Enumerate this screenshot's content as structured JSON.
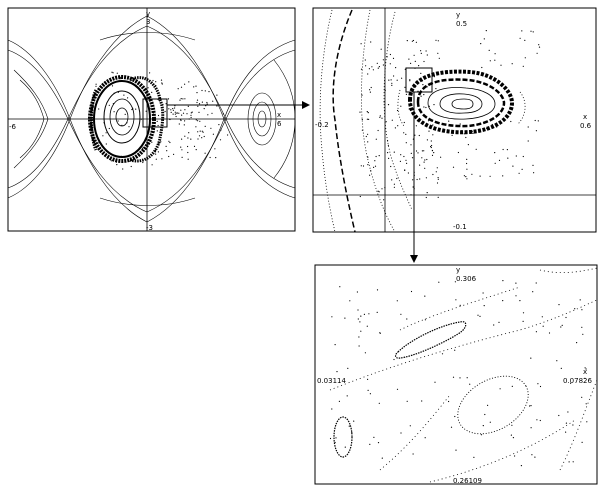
{
  "panels": {
    "main": {
      "y_axis_name": "y",
      "y_top": "3",
      "y_bottom": "-3",
      "x_left": "-6",
      "x_right": "6",
      "x_axis_name": "x"
    },
    "zoom1": {
      "y_axis_name": "y",
      "y_top": "0.5",
      "y_bottom": "-0.1",
      "x_left": "-0.2",
      "x_right": "0.6",
      "x_axis_name": "x"
    },
    "zoom2": {
      "y_axis_name": "y",
      "y_top": "0.306",
      "y_bottom": "0.26109",
      "x_left": "0.03114",
      "x_right": "0.07826",
      "x_axis_name": "x"
    }
  },
  "colors": {
    "ink": "#000000",
    "background": "#ffffff"
  }
}
